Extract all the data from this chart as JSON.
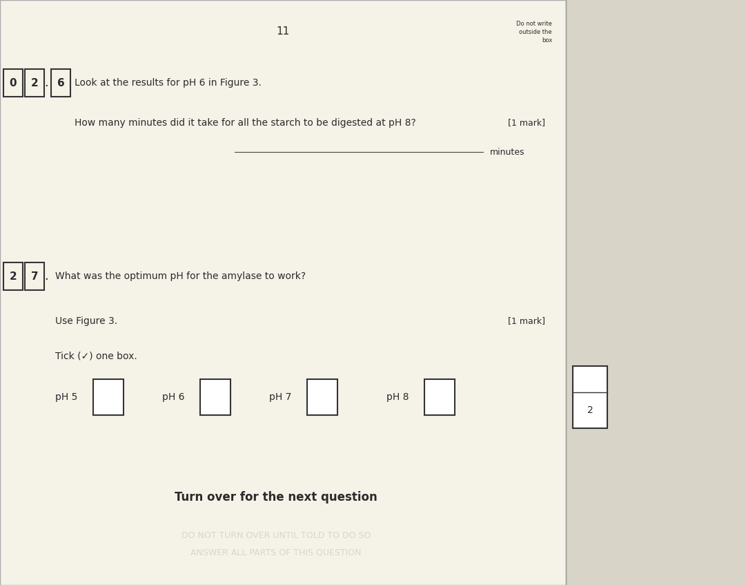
{
  "background_color": "#d8d4c8",
  "paper_color": "#f5f2e8",
  "page_number": "11",
  "do_not_write": "Do not write\noutside the\nbox",
  "question_26_text": "Look at the results for pH 6 in Figure 3.",
  "question_26_subtext": "How many minutes did it take for all the starch to be digested at pH 8?",
  "mark_26": "[1 mark]",
  "minutes_label": "minutes",
  "question_27_text": "What was the optimum pH for the amylase to work?",
  "question_27_use": "Use Figure 3.",
  "mark_27": "[1 mark]",
  "tick_instruction": "Tick (✓) one box.",
  "ph_options": [
    "pH 5",
    "pH 6",
    "pH 7",
    "pH 8"
  ],
  "score_box_label": "2",
  "turn_over_text": "Turn over for the next question",
  "watermark_line1": "DO NOT TURN OVER UNTIL TOLD TO DO SO",
  "watermark_line2": "ANSWER ALL PARTS OF THIS QUESTION",
  "text_color": "#2a2a2a",
  "box_labels_26": [
    "0",
    "2",
    "6"
  ],
  "box_labels_27": [
    "2",
    "7"
  ]
}
